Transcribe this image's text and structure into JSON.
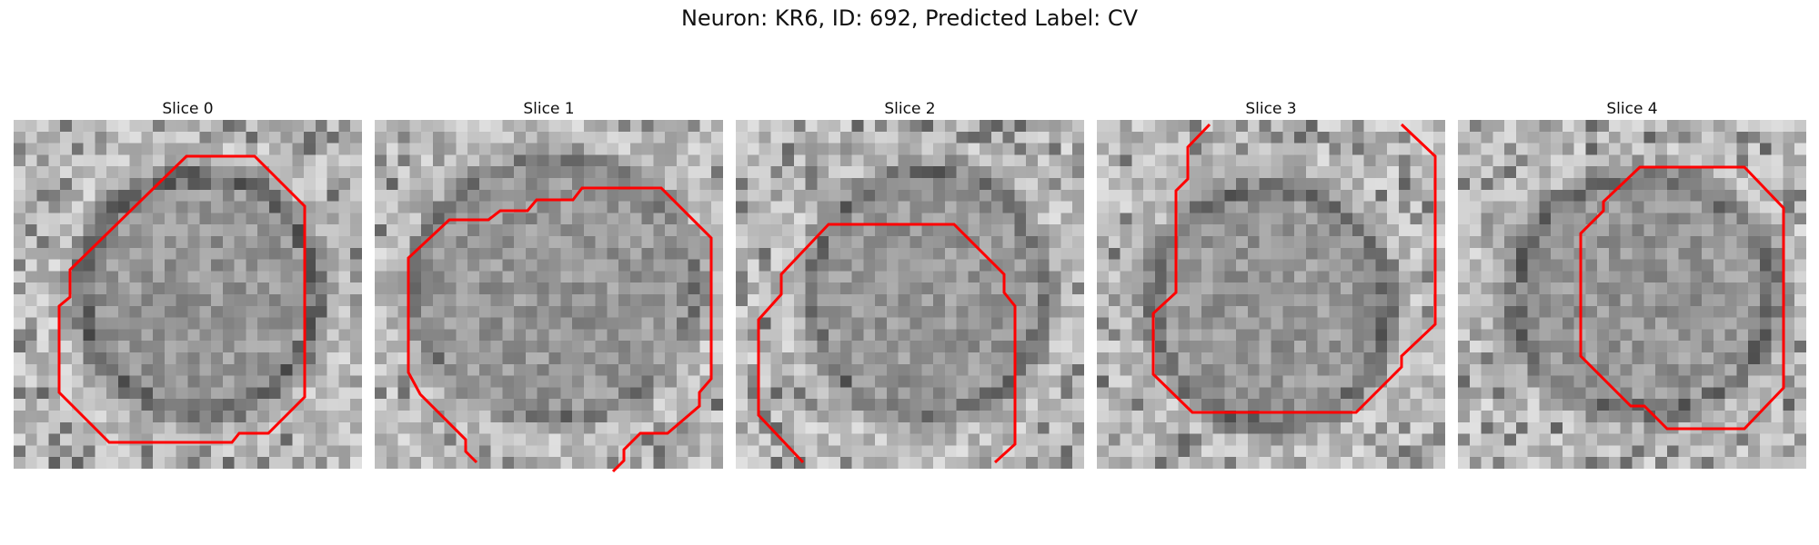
{
  "figure": {
    "title": "Neuron: KR6, ID: 692, Predicted Label: CV"
  },
  "slices": [
    {
      "label": "Slice 0"
    },
    {
      "label": "Slice 1"
    },
    {
      "label": "Slice 2"
    },
    {
      "label": "Slice 3"
    },
    {
      "label": "Slice 4"
    }
  ],
  "colors": {
    "contour": "#ff0000",
    "background": "#ffffff"
  }
}
